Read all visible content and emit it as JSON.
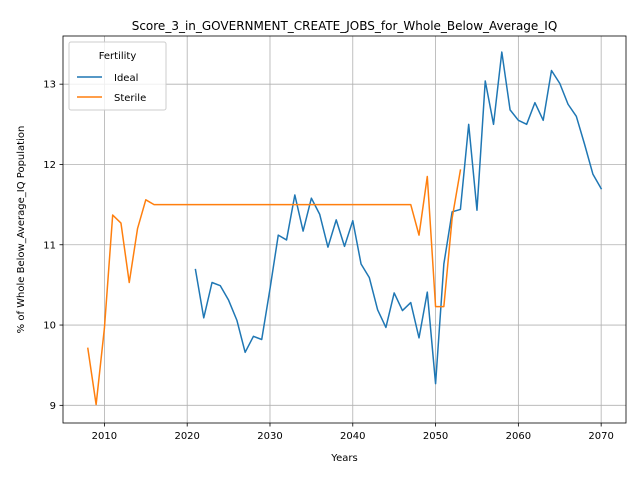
{
  "chart_data": {
    "type": "line",
    "title": "Score_3_in_GOVERNMENT_CREATE_JOBS_for_Whole_Below_Average_IQ",
    "xlabel": "Years",
    "ylabel": "% of Whole Below_Average_IQ Population",
    "xlim": [
      2005,
      2073
    ],
    "ylim": [
      8.78,
      13.6
    ],
    "xticks": [
      2010,
      2020,
      2030,
      2040,
      2050,
      2060,
      2070
    ],
    "yticks": [
      9,
      10,
      11,
      12,
      13
    ],
    "grid": true,
    "legend": {
      "title": "Fertility",
      "placement": "upper-left"
    },
    "series": [
      {
        "name": "Ideal",
        "color": "#1f77b4",
        "x": [
          2021,
          2022,
          2023,
          2024,
          2025,
          2026,
          2027,
          2028,
          2029,
          2030,
          2031,
          2032,
          2033,
          2034,
          2035,
          2036,
          2037,
          2038,
          2039,
          2040,
          2041,
          2042,
          2043,
          2044,
          2045,
          2046,
          2047,
          2048,
          2049,
          2050,
          2051,
          2052,
          2053,
          2054,
          2055,
          2056,
          2057,
          2058,
          2059,
          2060,
          2061,
          2062,
          2063,
          2064,
          2065,
          2066,
          2067,
          2068,
          2069,
          2070
        ],
        "y": [
          10.69,
          10.09,
          10.53,
          10.49,
          10.31,
          10.06,
          9.66,
          9.86,
          9.82,
          10.45,
          11.12,
          11.06,
          11.62,
          11.17,
          11.58,
          11.38,
          10.97,
          11.31,
          10.98,
          11.3,
          10.76,
          10.59,
          10.19,
          9.97,
          10.4,
          10.18,
          10.28,
          9.84,
          10.41,
          9.27,
          10.76,
          11.41,
          11.44,
          12.5,
          11.43,
          13.04,
          12.5,
          13.4,
          12.68,
          12.55,
          12.5,
          12.77,
          12.55,
          13.17,
          13.01,
          12.75,
          12.6,
          12.25,
          11.88,
          11.7
        ]
      },
      {
        "name": "Sterile",
        "color": "#ff7f0e",
        "x": [
          2008,
          2009,
          2010,
          2011,
          2012,
          2013,
          2014,
          2015,
          2016,
          2017,
          2018,
          2019,
          2020,
          2021,
          2022,
          2023,
          2024,
          2025,
          2026,
          2027,
          2028,
          2029,
          2030,
          2031,
          2032,
          2033,
          2034,
          2035,
          2036,
          2037,
          2038,
          2039,
          2040,
          2041,
          2042,
          2043,
          2044,
          2045,
          2046,
          2047,
          2048,
          2049,
          2050,
          2051,
          2052,
          2053
        ],
        "y": [
          9.71,
          9.01,
          9.96,
          11.37,
          11.27,
          10.53,
          11.2,
          11.56,
          11.5,
          11.5,
          11.5,
          11.5,
          11.5,
          11.5,
          11.5,
          11.5,
          11.5,
          11.5,
          11.5,
          11.5,
          11.5,
          11.5,
          11.5,
          11.5,
          11.5,
          11.5,
          11.5,
          11.5,
          11.5,
          11.5,
          11.5,
          11.5,
          11.5,
          11.5,
          11.5,
          11.5,
          11.5,
          11.5,
          11.5,
          11.5,
          11.12,
          11.85,
          10.23,
          10.23,
          11.33,
          11.93
        ]
      }
    ]
  }
}
